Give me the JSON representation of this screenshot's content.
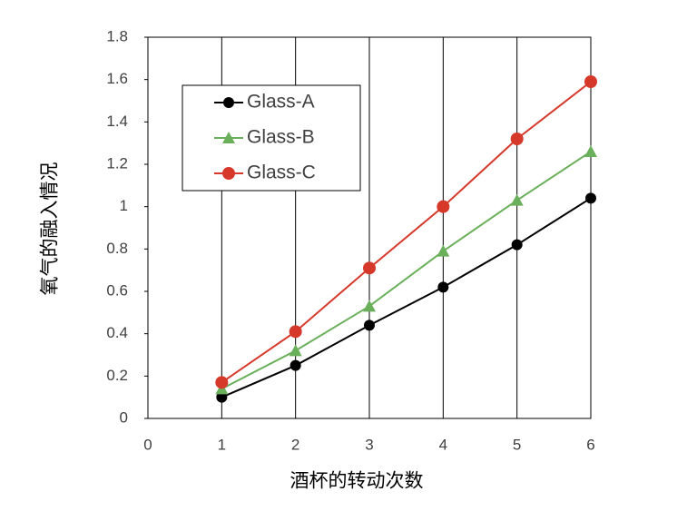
{
  "chart_data": {
    "type": "line",
    "xlabel": "酒杯的转动次数",
    "ylabel": "氧气的融入情况",
    "x": [
      1,
      2,
      3,
      4,
      5,
      6
    ],
    "series": [
      {
        "name": "Glass-A",
        "color": "#000000",
        "marker": "circle",
        "values": [
          0.1,
          0.25,
          0.44,
          0.62,
          0.82,
          1.04
        ]
      },
      {
        "name": "Glass-B",
        "color": "#6aaf5a",
        "marker": "triangle",
        "values": [
          0.14,
          0.32,
          0.53,
          0.79,
          1.03,
          1.26
        ]
      },
      {
        "name": "Glass-C",
        "color": "#d6382a",
        "marker": "circle",
        "values": [
          0.17,
          0.41,
          0.71,
          1.0,
          1.32,
          1.59
        ]
      }
    ],
    "xlim": [
      0,
      6
    ],
    "xticks": [
      0,
      1,
      2,
      3,
      4,
      5,
      6
    ],
    "ylim": [
      0,
      1.8
    ],
    "yticks": [
      0,
      0.2,
      0.4,
      0.6,
      0.8,
      1,
      1.2,
      1.4,
      1.6,
      1.8
    ],
    "grid": "x"
  }
}
